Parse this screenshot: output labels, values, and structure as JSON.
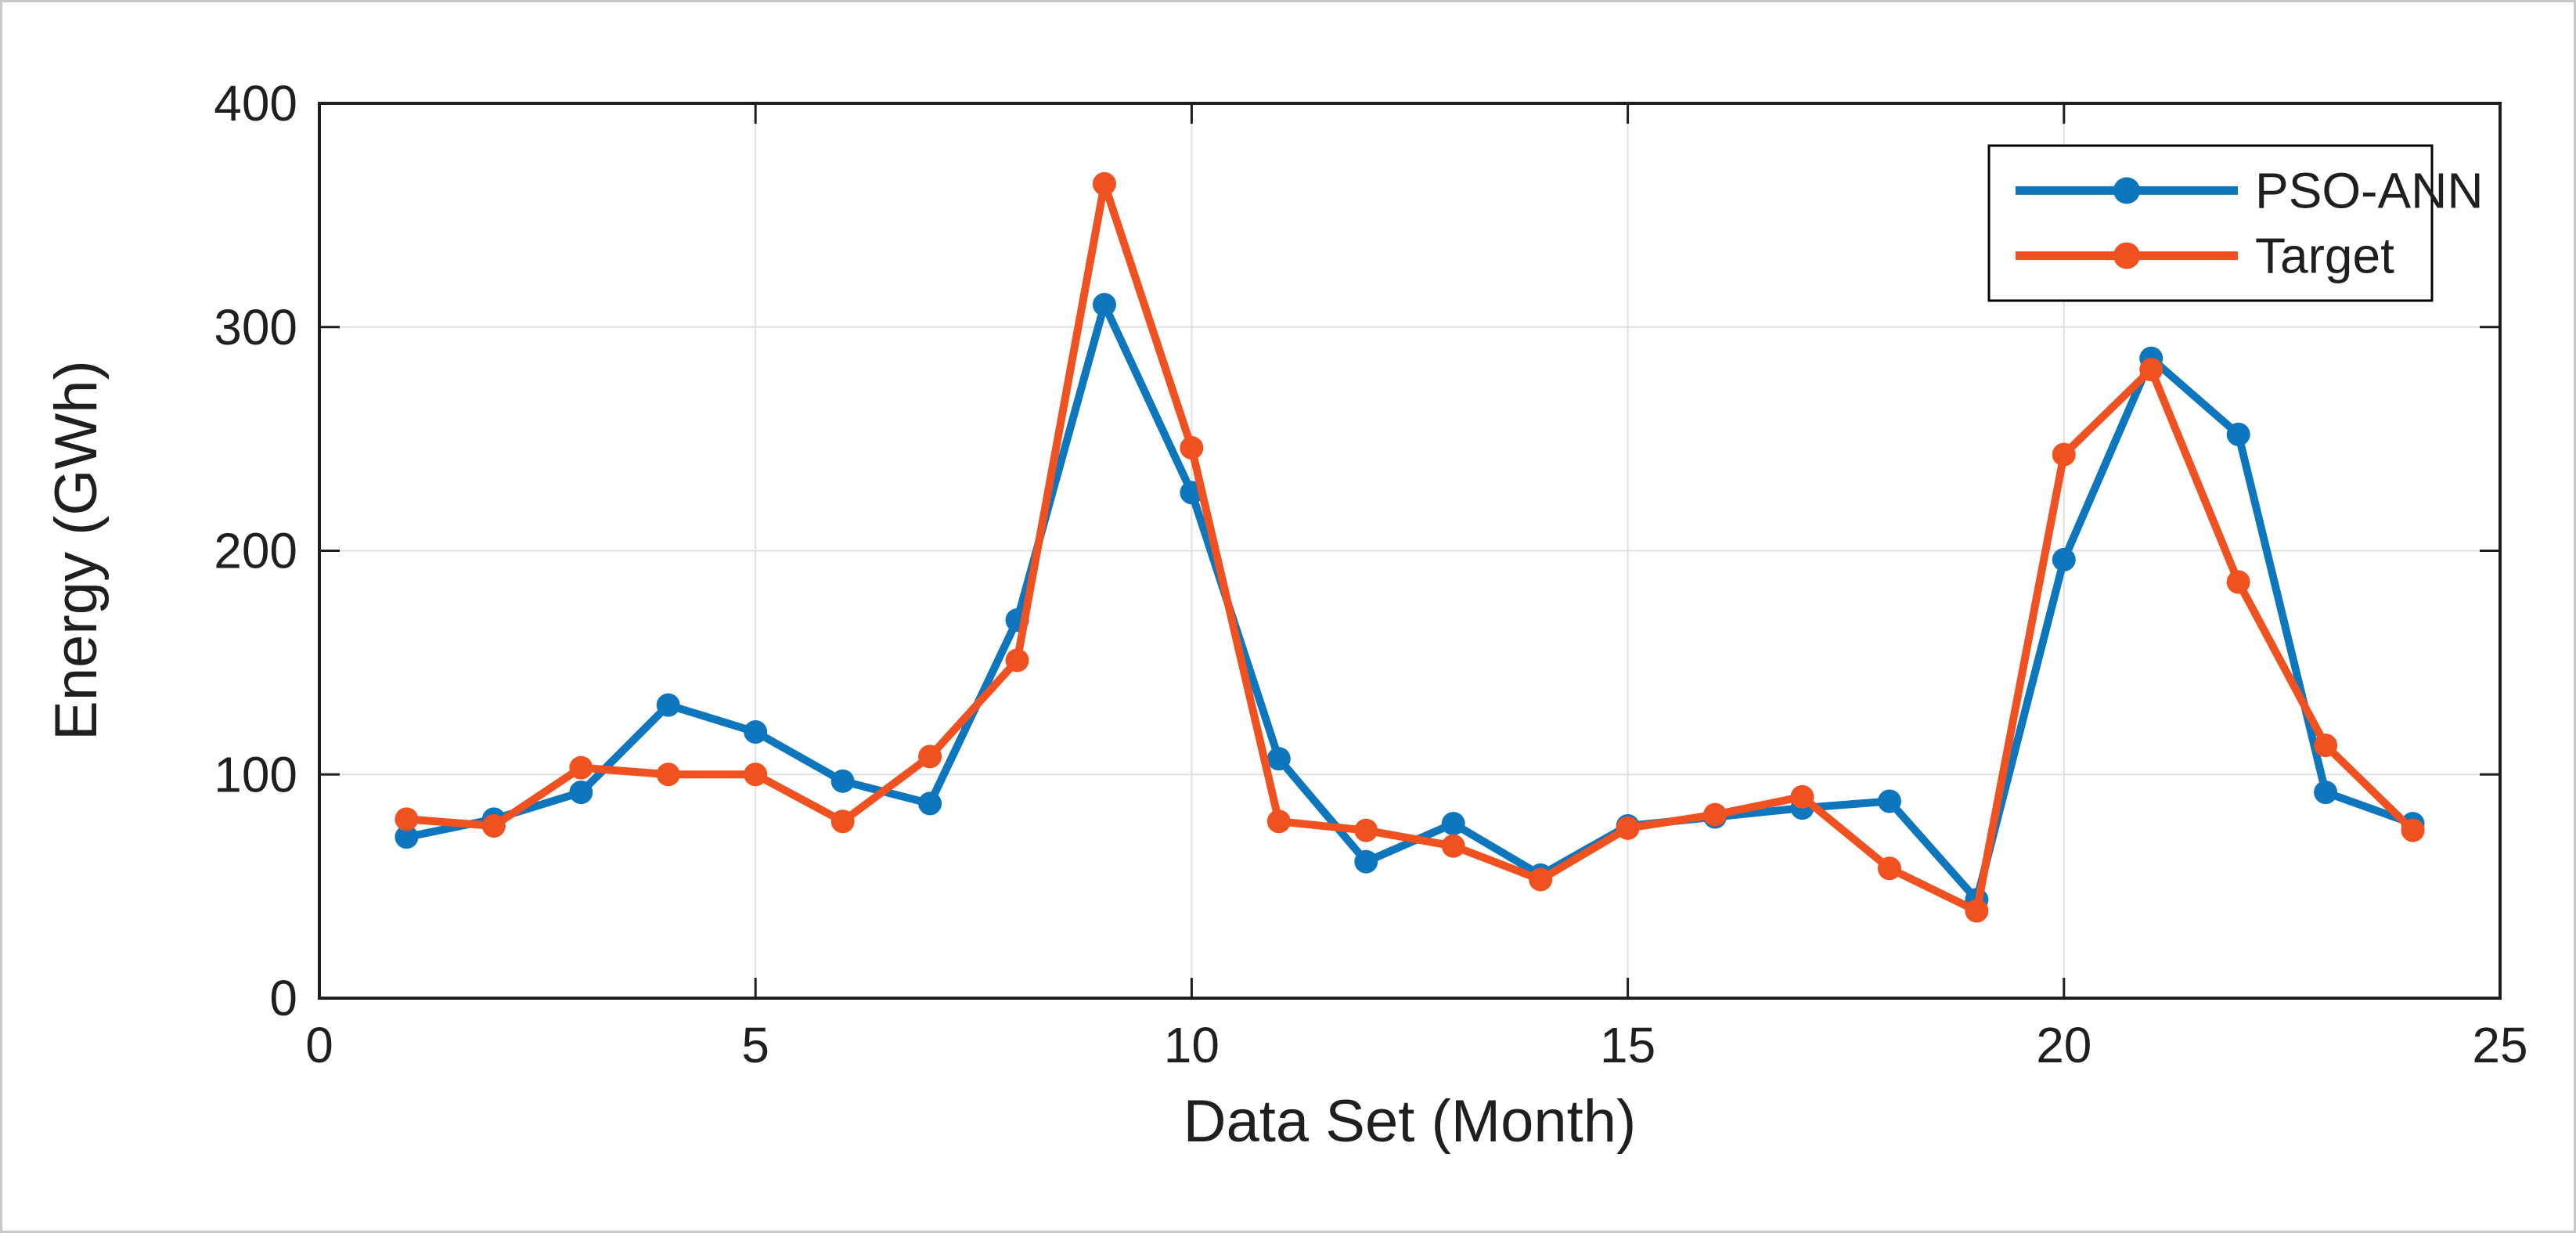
{
  "figure": {
    "background_color": "#ffffff",
    "frame_border_color": "#c9c9c9",
    "axes_color": "#1f1f1f",
    "gridline_color": "#e0e0e0"
  },
  "chart_data": {
    "type": "line",
    "title": "",
    "xlabel": "Data Set (Month)",
    "ylabel": "Energy (GWh)",
    "xlim": [
      0,
      25
    ],
    "ylim": [
      0,
      400
    ],
    "xticks": [
      0,
      5,
      10,
      15,
      20,
      25
    ],
    "yticks": [
      0,
      100,
      200,
      300,
      400
    ],
    "grid": true,
    "legend_position": "top-right",
    "x": [
      1,
      2,
      3,
      4,
      5,
      6,
      7,
      8,
      9,
      10,
      11,
      12,
      13,
      14,
      15,
      16,
      17,
      18,
      19,
      20,
      21,
      22,
      23,
      24
    ],
    "series": [
      {
        "name": "PSO-ANN",
        "color": "#0e76bd",
        "values": [
          72,
          80,
          92,
          131,
          119,
          97,
          87,
          169,
          310,
          226,
          107,
          61,
          78,
          55,
          77,
          81,
          85,
          88,
          44,
          196,
          286,
          252,
          92,
          78
        ]
      },
      {
        "name": "Target",
        "color": "#ef5121",
        "values": [
          80,
          77,
          103,
          100,
          100,
          79,
          108,
          151,
          364,
          246,
          79,
          75,
          68,
          53,
          76,
          82,
          90,
          58,
          39,
          243,
          281,
          186,
          113,
          75
        ]
      }
    ]
  }
}
